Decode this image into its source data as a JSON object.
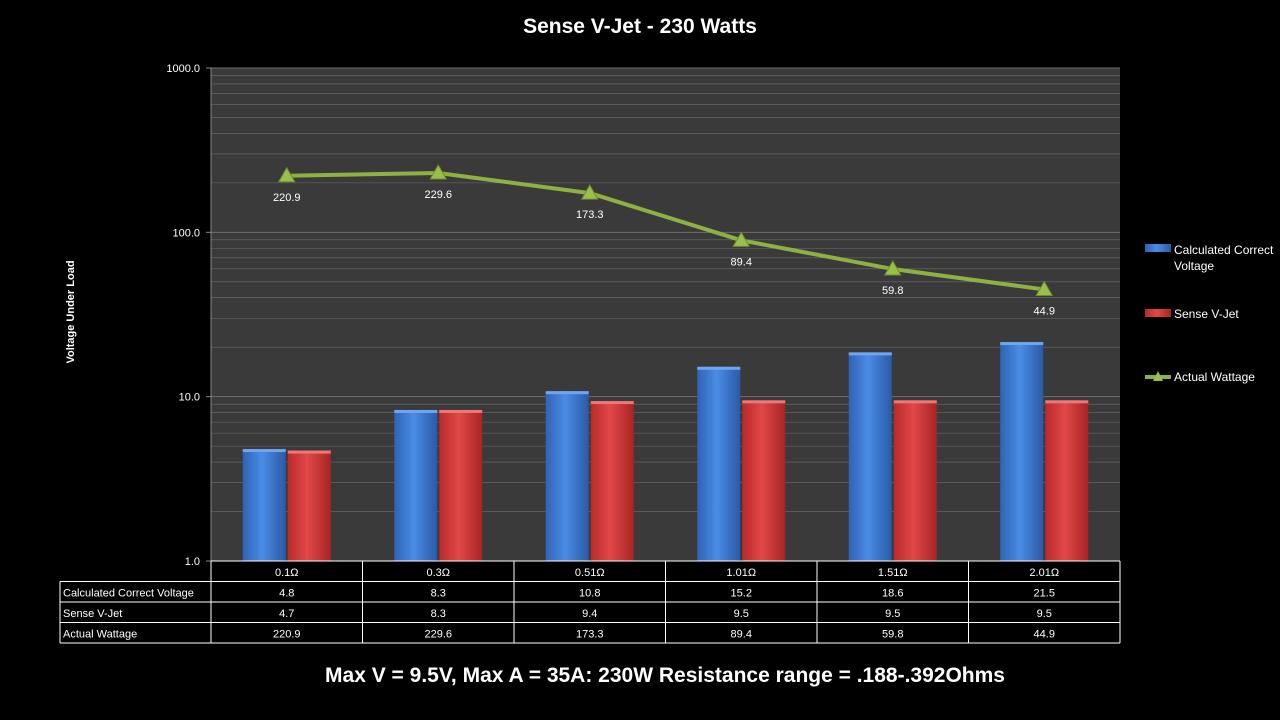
{
  "chart_data": {
    "type": "bar",
    "title": "Sense V-Jet - 230 Watts",
    "ylabel": "Voltage Under Load",
    "xlabel": "",
    "y_scale": "log",
    "ylim": [
      1,
      1000
    ],
    "y_ticks": [
      "1.0",
      "10.0",
      "100.0",
      "1000.0"
    ],
    "grid": true,
    "legend_position": "right",
    "categories": [
      "0.1Ω",
      "0.3Ω",
      "0.51Ω",
      "1.01Ω",
      "1.51Ω",
      "2.01Ω"
    ],
    "series": [
      {
        "name": "Calculated Correct Voltage",
        "type": "bar",
        "color": "#3a7bd5",
        "values": [
          4.8,
          8.3,
          10.8,
          15.2,
          18.6,
          21.5
        ],
        "labels": [
          "4.8",
          "8.3",
          "10.8",
          "15.2",
          "18.6",
          "21.5"
        ]
      },
      {
        "name": "Sense V-Jet",
        "type": "bar",
        "color": "#d93a3a",
        "values": [
          4.7,
          8.3,
          9.4,
          9.5,
          9.5,
          9.5
        ],
        "labels": [
          "4.7",
          "8.3",
          "9.4",
          "9.5",
          "9.5",
          "9.5"
        ]
      },
      {
        "name": "Actual Wattage",
        "type": "line",
        "marker": "triangle",
        "color": "#8fb043",
        "values": [
          220.9,
          229.6,
          173.3,
          89.4,
          59.8,
          44.9
        ],
        "labels": [
          "220.9",
          "229.6",
          "173.3",
          "89.4",
          "59.8",
          "44.9"
        ]
      }
    ],
    "annotations": [
      "Max V = 9.5V, Max A = 35A:  230W Resistance range = .188-.392Ohms"
    ]
  },
  "colors": {
    "background": "#000000",
    "plot_area": "#3a3a3a",
    "gridline": "#6e6e6e",
    "text": "#ffffff"
  }
}
